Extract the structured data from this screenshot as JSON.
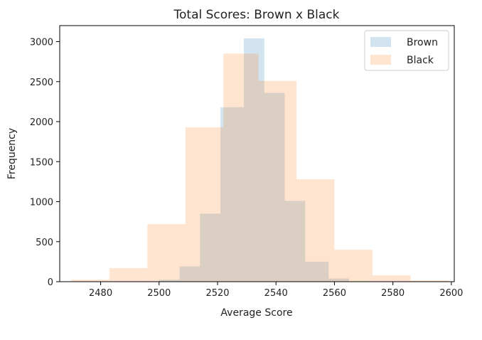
{
  "chart_data": {
    "type": "bar",
    "title": "Total Scores: Brown x Black",
    "xlabel": "Average Score",
    "ylabel": "Frequency",
    "xlim": [
      2466,
      2601
    ],
    "ylim": [
      0,
      3200
    ],
    "xticks": [
      2480,
      2500,
      2520,
      2540,
      2560,
      2580,
      2600
    ],
    "yticks": [
      0,
      500,
      1000,
      1500,
      2000,
      2500,
      3000
    ],
    "grid": false,
    "legend_position": "top-right",
    "series": [
      {
        "name": "Brown",
        "color": "#1f77b4",
        "opacity": 0.2,
        "bins": [
          {
            "x0": 2500,
            "x1": 2507,
            "value": 25
          },
          {
            "x0": 2507,
            "x1": 2514,
            "value": 190
          },
          {
            "x0": 2514,
            "x1": 2521,
            "value": 850
          },
          {
            "x0": 2521,
            "x1": 2529,
            "value": 2180
          },
          {
            "x0": 2529,
            "x1": 2536,
            "value": 3040
          },
          {
            "x0": 2536,
            "x1": 2543,
            "value": 2360
          },
          {
            "x0": 2543,
            "x1": 2550,
            "value": 1010
          },
          {
            "x0": 2550,
            "x1": 2558,
            "value": 250
          },
          {
            "x0": 2558,
            "x1": 2565,
            "value": 40
          },
          {
            "x0": 2565,
            "x1": 2572,
            "value": 5
          }
        ]
      },
      {
        "name": "Black",
        "color": "#ff7f0e",
        "opacity": 0.2,
        "bins": [
          {
            "x0": 2470,
            "x1": 2483,
            "value": 25
          },
          {
            "x0": 2483,
            "x1": 2496,
            "value": 170
          },
          {
            "x0": 2496,
            "x1": 2509,
            "value": 720
          },
          {
            "x0": 2509,
            "x1": 2522,
            "value": 1930
          },
          {
            "x0": 2522,
            "x1": 2534,
            "value": 2850
          },
          {
            "x0": 2534,
            "x1": 2547,
            "value": 2510
          },
          {
            "x0": 2547,
            "x1": 2560,
            "value": 1280
          },
          {
            "x0": 2560,
            "x1": 2573,
            "value": 400
          },
          {
            "x0": 2573,
            "x1": 2586,
            "value": 80
          },
          {
            "x0": 2586,
            "x1": 2599,
            "value": 15
          }
        ]
      }
    ]
  }
}
